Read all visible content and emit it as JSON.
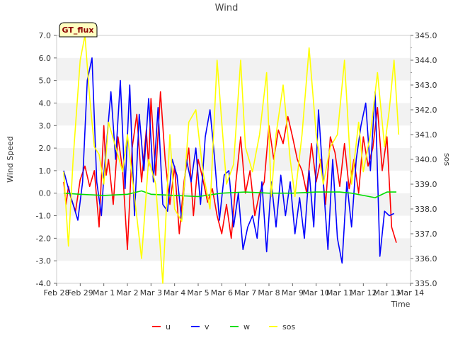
{
  "chart_data": {
    "type": "line",
    "title": "Wind",
    "xlabel": "Time",
    "ylabel": "Wind Speed",
    "y2label": "sos",
    "badge": "GT_flux",
    "grid": "horizontal bands",
    "legend_position": "bottom-center",
    "x_ticks": [
      "Feb 28",
      "Feb 29",
      "Mar 1",
      "Mar 2",
      "Mar 3",
      "Mar 4",
      "Mar 5",
      "Mar 6",
      "Mar 7",
      "Mar 8",
      "Mar 9",
      "Mar 10",
      "Mar 11",
      "Mar 12",
      "Mar 13",
      "Mar 14"
    ],
    "xlim": [
      0,
      15
    ],
    "ylim": [
      -4.0,
      7.0
    ],
    "y_ticks": [
      "-4.0",
      "-3.0",
      "-2.0",
      "-1.0",
      "0.0",
      "1.0",
      "2.0",
      "3.0",
      "4.0",
      "5.0",
      "6.0",
      "7.0"
    ],
    "y2lim": [
      335.0,
      345.0
    ],
    "y2_ticks": [
      "335.0",
      "336.0",
      "337.0",
      "338.0",
      "339.0",
      "340.0",
      "341.0",
      "342.0",
      "343.0",
      "344.0",
      "345.0"
    ],
    "series": [
      {
        "name": "u",
        "color": "#ff0000",
        "axis": "left",
        "x": [
          0.3,
          0.4,
          0.5,
          0.6,
          0.8,
          1.0,
          1.2,
          1.4,
          1.6,
          1.8,
          2.0,
          2.1,
          2.2,
          2.4,
          2.6,
          2.8,
          3.0,
          3.2,
          3.4,
          3.6,
          3.8,
          3.9,
          4.0,
          4.2,
          4.4,
          4.6,
          4.8,
          5.0,
          5.2,
          5.4,
          5.6,
          5.8,
          6.0,
          6.2,
          6.4,
          6.6,
          6.8,
          7.0,
          7.2,
          7.4,
          7.6,
          7.8,
          8.0,
          8.2,
          8.4,
          8.6,
          8.8,
          9.0,
          9.2,
          9.4,
          9.6,
          9.8,
          10.0,
          10.2,
          10.4,
          10.6,
          10.8,
          11.0,
          11.2,
          11.4,
          11.6,
          11.8,
          12.0,
          12.2,
          12.4,
          12.6,
          12.8,
          13.0,
          13.2,
          13.4,
          13.6,
          13.8,
          14.0,
          14.2,
          14.4
        ],
        "values": [
          0.5,
          -0.5,
          0.3,
          -0.2,
          -0.8,
          0.6,
          1.2,
          0.3,
          1.0,
          -1.5,
          3.0,
          0.8,
          1.5,
          -0.5,
          2.5,
          1.0,
          -2.5,
          2.0,
          3.5,
          0.5,
          2.8,
          1.2,
          4.2,
          0.8,
          4.5,
          1.5,
          -0.5,
          1.2,
          -1.8,
          0.5,
          2.0,
          -1.0,
          1.5,
          0.6,
          -0.4,
          0.2,
          -1.0,
          -1.8,
          -0.5,
          -2.0,
          0.5,
          2.5,
          0.0,
          1.0,
          -1.0,
          0.0,
          0.5,
          3.0,
          1.5,
          2.8,
          2.2,
          3.4,
          2.5,
          1.5,
          1.0,
          0.0,
          2.2,
          0.5,
          1.5,
          -0.5,
          2.5,
          1.8,
          0.3,
          2.2,
          0.2,
          1.5,
          0.0,
          2.5,
          1.2,
          2.0,
          3.8,
          1.0,
          2.5,
          -1.5,
          -2.2
        ],
        "note": ""
      },
      {
        "name": "v",
        "color": "#0000ff",
        "axis": "left",
        "x": [
          0.3,
          0.5,
          0.7,
          0.9,
          1.1,
          1.3,
          1.5,
          1.7,
          1.9,
          2.0,
          2.1,
          2.3,
          2.5,
          2.7,
          2.9,
          3.1,
          3.3,
          3.5,
          3.7,
          3.9,
          4.1,
          4.3,
          4.5,
          4.7,
          4.9,
          5.1,
          5.3,
          5.5,
          5.7,
          5.9,
          6.1,
          6.3,
          6.5,
          6.7,
          6.9,
          7.1,
          7.3,
          7.5,
          7.7,
          7.9,
          8.1,
          8.3,
          8.5,
          8.7,
          8.9,
          9.1,
          9.3,
          9.5,
          9.7,
          9.9,
          10.1,
          10.3,
          10.5,
          10.7,
          10.9,
          11.1,
          11.3,
          11.5,
          11.7,
          11.9,
          12.1,
          12.3,
          12.5,
          12.7,
          12.9,
          13.1,
          13.3,
          13.5,
          13.7,
          13.9,
          14.1,
          14.3
        ],
        "values": [
          1.0,
          0.2,
          -0.5,
          -1.2,
          0.5,
          5.0,
          6.0,
          0.5,
          -1.0,
          0.8,
          2.0,
          4.5,
          1.5,
          5.0,
          0.2,
          4.8,
          -1.0,
          3.5,
          1.0,
          4.2,
          0.5,
          3.8,
          -0.5,
          -0.8,
          1.5,
          0.8,
          -1.2,
          1.5,
          0.5,
          2.0,
          -0.5,
          2.5,
          3.7,
          1.5,
          -1.2,
          0.8,
          1.0,
          -1.5,
          0.0,
          -2.5,
          -1.5,
          -1.0,
          -2.0,
          0.5,
          -2.6,
          0.5,
          -1.5,
          0.8,
          -1.0,
          0.5,
          -1.8,
          -0.2,
          -2.0,
          1.0,
          -1.5,
          3.7,
          0.5,
          -2.5,
          1.5,
          -2.0,
          -3.1,
          0.5,
          -1.5,
          1.5,
          3.0,
          4.0,
          1.0,
          4.5,
          -2.8,
          -0.8,
          -1.0,
          -0.9
        ],
        "note": ""
      },
      {
        "name": "w",
        "color": "#00dd00",
        "axis": "left",
        "x": [
          0.3,
          1.0,
          2.0,
          3.0,
          3.6,
          4.0,
          5.0,
          6.0,
          7.0,
          8.0,
          9.0,
          10.0,
          11.0,
          12.0,
          12.5,
          13.0,
          13.5,
          14.0,
          14.4
        ],
        "values": [
          0.0,
          -0.05,
          -0.1,
          -0.05,
          0.1,
          -0.05,
          -0.1,
          -0.15,
          0.0,
          0.05,
          0.0,
          0.0,
          0.05,
          0.05,
          0.0,
          -0.1,
          -0.2,
          0.05,
          0.05
        ],
        "note": ""
      },
      {
        "name": "sos",
        "color": "#ffff00",
        "axis": "right",
        "x": [
          0.3,
          0.5,
          0.7,
          1.0,
          1.2,
          1.4,
          1.6,
          1.8,
          2.0,
          2.2,
          2.5,
          2.8,
          3.0,
          3.3,
          3.6,
          3.9,
          4.2,
          4.5,
          4.8,
          5.0,
          5.3,
          5.6,
          5.9,
          6.2,
          6.5,
          6.8,
          7.0,
          7.2,
          7.5,
          7.8,
          8.0,
          8.3,
          8.6,
          8.9,
          9.1,
          9.3,
          9.6,
          9.9,
          10.1,
          10.4,
          10.7,
          11.0,
          11.3,
          11.6,
          11.9,
          12.2,
          12.5,
          12.8,
          13.0,
          13.3,
          13.6,
          13.9,
          14.1,
          14.3,
          14.5
        ],
        "values": [
          339.5,
          336.5,
          340.0,
          344.0,
          345.0,
          342.5,
          340.5,
          340.2,
          339.0,
          341.5,
          340.5,
          339.5,
          341.0,
          338.5,
          336.0,
          340.0,
          339.0,
          335.0,
          341.0,
          338.0,
          337.5,
          341.5,
          342.0,
          339.5,
          338.0,
          344.0,
          341.5,
          339.0,
          339.8,
          344.0,
          340.5,
          339.5,
          341.0,
          343.5,
          338.5,
          341.0,
          343.0,
          340.0,
          338.5,
          341.0,
          344.5,
          341.0,
          339.0,
          340.5,
          341.0,
          344.0,
          339.0,
          341.5,
          339.5,
          341.0,
          343.5,
          340.5,
          342.0,
          344.0,
          341.0
        ],
        "note": ""
      }
    ]
  }
}
